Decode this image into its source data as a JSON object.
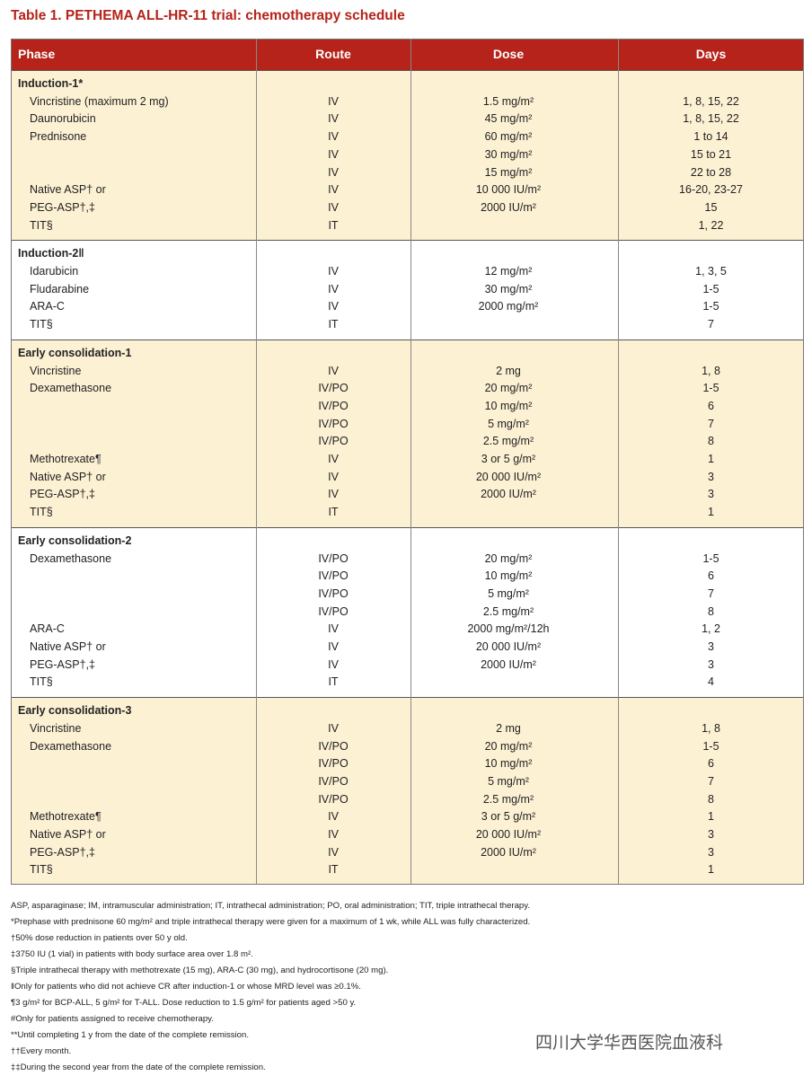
{
  "title": "Table 1. PETHEMA ALL-HR-11 trial: chemotherapy schedule",
  "table": {
    "header": [
      "Phase",
      "Route",
      "Dose",
      "Days"
    ],
    "sections": [
      {
        "title": "Induction-1*",
        "rows": [
          [
            "Vincristine (maximum 2 mg)",
            "IV",
            "1.5 mg/m²",
            "1, 8, 15, 22"
          ],
          [
            "Daunorubicin",
            "IV",
            "45 mg/m²",
            "1, 8, 15, 22"
          ],
          [
            "Prednisone",
            "IV",
            "60 mg/m²",
            "1 to 14"
          ],
          [
            null,
            "IV",
            "30 mg/m²",
            "15 to 21"
          ],
          [
            null,
            "IV",
            "15 mg/m²",
            "22 to 28"
          ],
          [
            "Native ASP† or",
            "IV",
            "10 000 IU/m²",
            "16-20, 23-27"
          ],
          [
            "PEG-ASP†,‡",
            "IV",
            "2000 IU/m²",
            "15"
          ],
          [
            "TIT§",
            "IT",
            null,
            "1, 22"
          ]
        ]
      },
      {
        "title": "Induction-2‖",
        "rows": [
          [
            "Idarubicin",
            "IV",
            "12 mg/m²",
            "1, 3, 5"
          ],
          [
            "Fludarabine",
            "IV",
            "30 mg/m²",
            "1-5"
          ],
          [
            "ARA-C",
            "IV",
            "2000 mg/m²",
            "1-5"
          ],
          [
            "TIT§",
            "IT",
            null,
            "7"
          ]
        ]
      },
      {
        "title": "Early consolidation-1",
        "rows": [
          [
            "Vincristine",
            "IV",
            "2 mg",
            "1, 8"
          ],
          [
            "Dexamethasone",
            "IV/PO",
            "20 mg/m²",
            "1-5"
          ],
          [
            null,
            "IV/PO",
            "10 mg/m²",
            "6"
          ],
          [
            null,
            "IV/PO",
            "5 mg/m²",
            "7"
          ],
          [
            null,
            "IV/PO",
            "2.5 mg/m²",
            "8"
          ],
          [
            "Methotrexate¶",
            "IV",
            "3 or 5 g/m²",
            "1"
          ],
          [
            "Native ASP† or",
            "IV",
            "20 000 IU/m²",
            "3"
          ],
          [
            "PEG-ASP†,‡",
            "IV",
            "2000 IU/m²",
            "3"
          ],
          [
            "TIT§",
            "IT",
            null,
            "1"
          ]
        ]
      },
      {
        "title": "Early consolidation-2",
        "rows": [
          [
            "Dexamethasone",
            "IV/PO",
            "20 mg/m²",
            "1-5"
          ],
          [
            null,
            "IV/PO",
            "10 mg/m²",
            "6"
          ],
          [
            null,
            "IV/PO",
            "5 mg/m²",
            "7"
          ],
          [
            null,
            "IV/PO",
            "2.5 mg/m²",
            "8"
          ],
          [
            "ARA-C",
            "IV",
            "2000 mg/m²/12h",
            "1, 2"
          ],
          [
            "Native ASP† or",
            "IV",
            "20 000 IU/m²",
            "3"
          ],
          [
            "PEG-ASP†,‡",
            "IV",
            "2000 IU/m²",
            "3"
          ],
          [
            "TIT§",
            "IT",
            null,
            "4"
          ]
        ]
      },
      {
        "title": "Early consolidation-3",
        "rows": [
          [
            "Vincristine",
            "IV",
            "2 mg",
            "1, 8"
          ],
          [
            "Dexamethasone",
            "IV/PO",
            "20 mg/m²",
            "1-5"
          ],
          [
            null,
            "IV/PO",
            "10 mg/m²",
            "6"
          ],
          [
            null,
            "IV/PO",
            "5 mg/m²",
            "7"
          ],
          [
            null,
            "IV/PO",
            "2.5 mg/m²",
            "8"
          ],
          [
            "Methotrexate¶",
            "IV",
            "3 or 5 g/m²",
            "1"
          ],
          [
            "Native ASP† or",
            "IV",
            "20 000 IU/m²",
            "3"
          ],
          [
            "PEG-ASP†,‡",
            "IV",
            "2000 IU/m²",
            "3"
          ],
          [
            "TIT§",
            "IT",
            null,
            "1"
          ]
        ]
      }
    ]
  },
  "footnotes": [
    "ASP, asparaginase; IM, intramuscular administration; IT, intrathecal administration; PO, oral administration; TIT, triple intrathecal therapy.",
    "*Prephase with prednisone 60 mg/m² and triple intrathecal therapy were given for a maximum of 1 wk, while ALL was fully characterized.",
    "†50% dose reduction in patients over 50 y old.",
    "‡3750 IU (1 vial) in patients with body surface area over 1.8 m².",
    "§Triple intrathecal therapy with methotrexate (15 mg), ARA-C (30 mg), and hydrocortisone (20 mg).",
    "‖Only for patients who did not achieve CR after induction-1 or whose MRD level was ≥0.1%.",
    "¶3 g/m² for BCP-ALL, 5 g/m² for T-ALL. Dose reduction to 1.5 g/m² for patients aged >50 y.",
    "#Only for patients assigned to receive chemotherapy.",
    "**Until completing 1 y from the date of the complete remission.",
    "††Every month.",
    "‡‡During the second year from the date of the complete remission."
  ],
  "watermark": "四川大学华西医院血液科"
}
